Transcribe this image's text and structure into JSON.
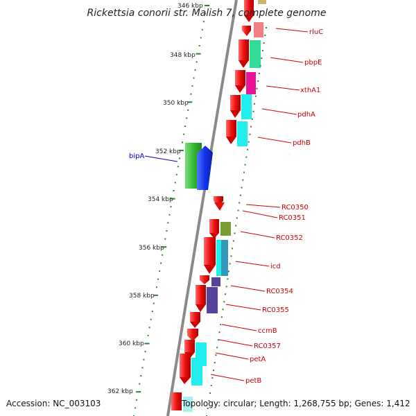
{
  "title": "Rickettsia conorii str. Malish 7, complete genome",
  "footer": {
    "accession": "Accession: NC_003103",
    "topology": "Topology: circular; Length: 1,268,755 bp; Genes: 1,412"
  },
  "ticks": [
    "346 kbp",
    "348 kbp",
    "350 kbp",
    "352 kbp",
    "354 kbp",
    "356 kbp",
    "358 kbp",
    "360 kbp",
    "362 kbp"
  ],
  "colors": {
    "backbone": "#8a8a8a",
    "tick_green": "#2f7d2f",
    "gene_label_red": "#cc0000",
    "gene_label_blue": "#0000cc",
    "cds_red": "#ee1111",
    "cds_blue": "#1133ee",
    "cds_green": "#33bb33"
  },
  "genes": [
    {
      "name": "rluC",
      "label_color": "#cc0000",
      "cog_color": "#f08080"
    },
    {
      "name": "pbpE",
      "label_color": "#cc0000",
      "cog_color": "#33dd99"
    },
    {
      "name": "xthA1",
      "label_color": "#cc0000",
      "cog_color": "#ee1199"
    },
    {
      "name": "pdhA",
      "label_color": "#cc0000",
      "cog_color": "#22eeee"
    },
    {
      "name": "pdhB",
      "label_color": "#cc0000",
      "cog_color": "#22eeee"
    },
    {
      "name": "bipA",
      "label_color": "#0000cc",
      "cog_color": "#44cc44"
    },
    {
      "name": "RC0350",
      "label_color": "#cc0000",
      "cog_color": ""
    },
    {
      "name": "RC0351",
      "label_color": "#cc0000",
      "cog_color": ""
    },
    {
      "name": "RC0352",
      "label_color": "#cc0000",
      "cog_color": "#7a9a33"
    },
    {
      "name": "icd",
      "label_color": "#cc0000",
      "cog_color": "#33aacc"
    },
    {
      "name": "RC0354",
      "label_color": "#cc0000",
      "cog_color": "#554499"
    },
    {
      "name": "RC0355",
      "label_color": "#cc0000",
      "cog_color": "#554499"
    },
    {
      "name": "ccmB",
      "label_color": "#cc0000",
      "cog_color": ""
    },
    {
      "name": "RC0357",
      "label_color": "#cc0000",
      "cog_color": ""
    },
    {
      "name": "petA",
      "label_color": "#cc0000",
      "cog_color": "#22eeee"
    },
    {
      "name": "petB",
      "label_color": "#cc0000",
      "cog_color": "#22eeee"
    }
  ]
}
